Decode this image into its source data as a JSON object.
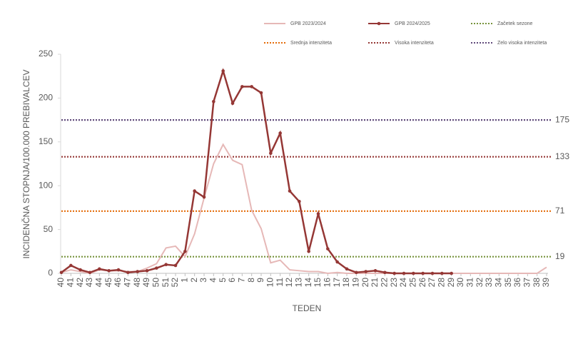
{
  "chart_data": {
    "type": "line",
    "xlabel": "TEDEN",
    "ylabel": "INCIDENČNA  STOPNJA/100.000  PREBIVALCEV",
    "categories": [
      40,
      41,
      42,
      43,
      44,
      45,
      46,
      47,
      48,
      49,
      50,
      51,
      52,
      1,
      2,
      3,
      4,
      5,
      6,
      7,
      8,
      9,
      10,
      11,
      12,
      13,
      14,
      15,
      16,
      17,
      18,
      19,
      20,
      21,
      22,
      23,
      24,
      25,
      26,
      27,
      28,
      29,
      30,
      31,
      32,
      33,
      34,
      35,
      36,
      37,
      38,
      39
    ],
    "ylim": [
      0,
      250
    ],
    "yticks": [
      0,
      50,
      100,
      150,
      200,
      250
    ],
    "series": [
      {
        "name": "GPB 2023/2024",
        "color": "#e6b8b7",
        "markers": false,
        "values": [
          1,
          4,
          2,
          0,
          4,
          3,
          3,
          2,
          2,
          6,
          11,
          29,
          31,
          19,
          45,
          86,
          125,
          147,
          129,
          124,
          72,
          51,
          12,
          15,
          4,
          3,
          2,
          2,
          0,
          1,
          0,
          0,
          0,
          0,
          0,
          0,
          0,
          0,
          0,
          0,
          0,
          0,
          0,
          0,
          0,
          0,
          0,
          0,
          0,
          0,
          0,
          7
        ]
      },
      {
        "name": "GPB 2024/2025",
        "color": "#953735",
        "markers": true,
        "values": [
          1,
          9,
          4,
          1,
          5,
          3,
          4,
          1,
          2,
          3,
          6,
          10,
          9,
          25,
          94,
          87,
          196,
          231,
          194,
          213,
          213,
          206,
          137,
          160,
          94,
          82,
          25,
          68,
          28,
          13,
          5,
          1,
          2,
          3,
          1,
          0,
          0,
          0,
          0,
          0,
          0,
          0,
          null,
          null,
          null,
          null,
          null,
          null,
          null,
          null,
          null,
          null
        ]
      }
    ],
    "thresholds": [
      {
        "name": "Začetek sezone",
        "color": "#77933c",
        "label_color": "#77933c",
        "value": 19
      },
      {
        "name": "Srednja intenziteta",
        "color": "#e46c0a",
        "label_color": "#e46c0a",
        "value": 71
      },
      {
        "name": "Visoka intenziteta",
        "color": "#953735",
        "label_color": "#8b2252",
        "value": 133
      },
      {
        "name": "Zelo visoka intenziteta",
        "color": "#604a7b",
        "label_color": "#604a7b",
        "value": 175
      }
    ]
  }
}
